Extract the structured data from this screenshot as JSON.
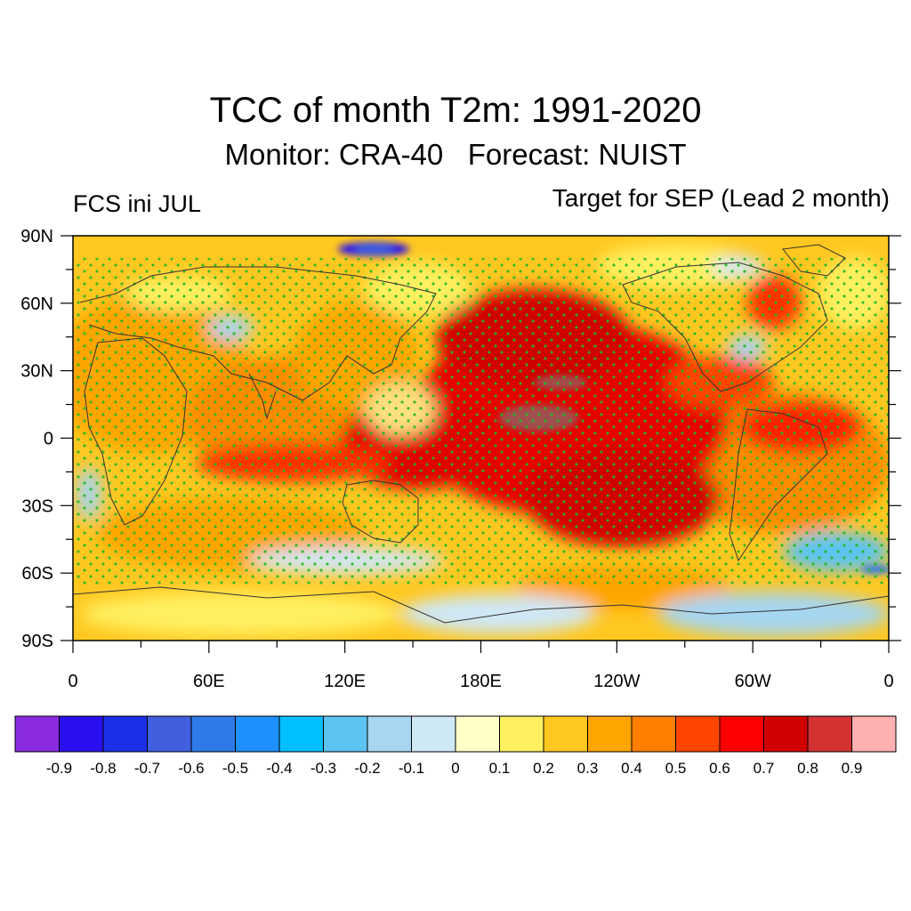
{
  "header": {
    "title": "TCC of month T2m: 1991-2020",
    "subtitle": "Monitor: CRA-40   Forecast: NUIST",
    "left_label": "FCS ini JUL",
    "right_label": "Target for SEP (Lead 2 month)"
  },
  "map": {
    "lat_labels": [
      "90N",
      "60N",
      "30N",
      "0",
      "30S",
      "60S",
      "90S"
    ],
    "lon_labels": [
      "0",
      "60E",
      "120E",
      "180E",
      "120W",
      "60W",
      "0"
    ],
    "stipple_color": "#22b822",
    "coast_color": "#333333"
  },
  "colorbar": {
    "colors": [
      "#8a2be2",
      "#2a10f0",
      "#1a30e8",
      "#4060e0",
      "#2e7ae8",
      "#1e90ff",
      "#00bfff",
      "#5cc4f2",
      "#a6d6f0",
      "#cfe8f6",
      "#ffffc8",
      "#fff060",
      "#ffc820",
      "#ffa500",
      "#ff7f00",
      "#ff4500",
      "#ff0000",
      "#d10000",
      "#d43232",
      "#ffb0b0"
    ],
    "labels": [
      "-0.9",
      "-0.8",
      "-0.7",
      "-0.6",
      "-0.5",
      "-0.4",
      "-0.3",
      "-0.2",
      "-0.1",
      "0",
      "0.1",
      "0.2",
      "0.3",
      "0.4",
      "0.5",
      "0.6",
      "0.7",
      "0.8",
      "0.9"
    ]
  }
}
